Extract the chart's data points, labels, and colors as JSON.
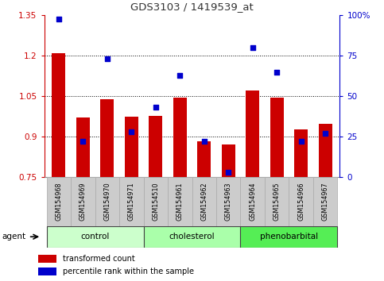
{
  "title": "GDS3103 / 1419539_at",
  "samples": [
    "GSM154968",
    "GSM154969",
    "GSM154970",
    "GSM154971",
    "GSM154510",
    "GSM154961",
    "GSM154962",
    "GSM154963",
    "GSM154964",
    "GSM154965",
    "GSM154966",
    "GSM154967"
  ],
  "transformed_count": [
    1.21,
    0.97,
    1.04,
    0.975,
    0.978,
    1.045,
    0.882,
    0.872,
    1.07,
    1.045,
    0.928,
    0.948
  ],
  "percentile_rank": [
    98,
    22,
    73,
    28,
    43,
    63,
    22,
    3,
    80,
    65,
    22,
    27
  ],
  "groups": [
    {
      "label": "control",
      "start": 0,
      "end": 4,
      "color": "#ccffcc"
    },
    {
      "label": "cholesterol",
      "start": 4,
      "end": 8,
      "color": "#aaffaa"
    },
    {
      "label": "phenobarbital",
      "start": 8,
      "end": 12,
      "color": "#55ee55"
    }
  ],
  "ylim_left": [
    0.75,
    1.35
  ],
  "ylim_right": [
    0,
    100
  ],
  "yticks_left": [
    0.75,
    0.9,
    1.05,
    1.2,
    1.35
  ],
  "yticks_right": [
    0,
    25,
    50,
    75,
    100
  ],
  "bar_color": "#cc0000",
  "dot_color": "#0000cc",
  "bar_width": 0.55,
  "background_color": "#ffffff",
  "plot_bg_color": "#ffffff",
  "title_color": "#333333",
  "left_axis_color": "#cc0000",
  "right_axis_color": "#0000cc",
  "grid_color": "#000000",
  "xlabel_bg_color": "#cccccc",
  "xlabel_edge_color": "#aaaaaa",
  "legend_items": [
    "transformed count",
    "percentile rank within the sample"
  ]
}
